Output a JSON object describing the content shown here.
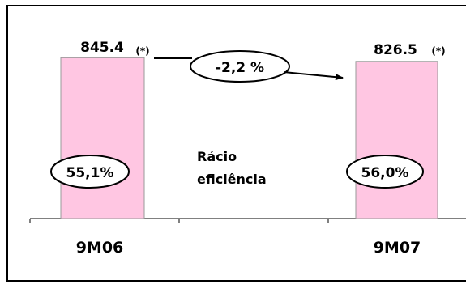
{
  "chart_data": {
    "type": "bar",
    "categories": [
      "9M06",
      "9M07"
    ],
    "values": [
      845.4,
      826.5
    ],
    "value_labels": [
      "845.4",
      "826.5"
    ],
    "value_notes": [
      "(*)",
      "(*)"
    ],
    "change_label": "-2,2 %",
    "ratio_title": [
      "Rácio",
      "eficiência"
    ],
    "ratios": [
      "55,1%",
      "56,0%"
    ],
    "colors": {
      "bar_fill": "#FFC6E2",
      "bar_stroke": "#999999"
    }
  }
}
